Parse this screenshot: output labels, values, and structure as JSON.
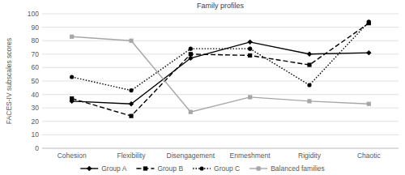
{
  "chart_data": {
    "type": "line",
    "title": "Family profiles",
    "y_label": "FACES-IV subscales scores",
    "categories": [
      "Cohesion",
      "Flexibility",
      "Disengagement",
      "Enmeshment",
      "Rigidity",
      "Chaotic"
    ],
    "series": [
      {
        "name": "Group A",
        "color": "#000000",
        "marker": "diamond",
        "line_style": "solid",
        "values": [
          35,
          33,
          67,
          79,
          70,
          71
        ]
      },
      {
        "name": "Group B",
        "color": "#000000",
        "marker": "square",
        "line_style": "dashed",
        "values": [
          37,
          24,
          70,
          69,
          62,
          93
        ]
      },
      {
        "name": "Group C",
        "color": "#000000",
        "marker": "circle",
        "line_style": "dotted",
        "values": [
          53,
          43,
          74,
          74,
          47,
          94
        ]
      },
      {
        "name": "Balanced families",
        "color": "#a6a6a6",
        "marker": "square",
        "line_style": "solid",
        "values": [
          83,
          80,
          27,
          38,
          35,
          33
        ]
      }
    ],
    "ylim": [
      0,
      100
    ],
    "yticks": [
      0,
      10,
      20,
      30,
      40,
      50,
      60,
      70,
      80,
      90,
      100
    ],
    "grid": true,
    "legend": "bottom"
  }
}
